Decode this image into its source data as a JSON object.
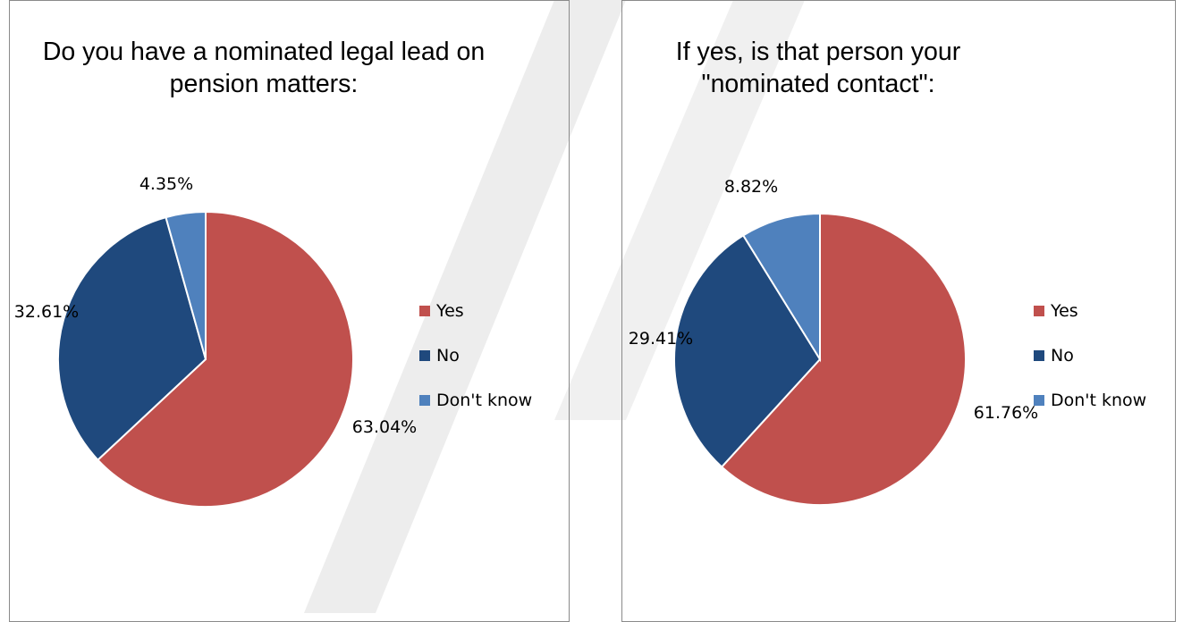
{
  "chart_data": [
    {
      "type": "pie",
      "title": "Do you have a nominated legal lead on pension matters:",
      "categories": [
        "Yes",
        "No",
        "Don't know"
      ],
      "values": [
        63.04,
        32.61,
        4.35
      ],
      "labels": [
        "63.04%",
        "32.61%",
        "4.35%"
      ],
      "colors": [
        "#C0504D",
        "#1F497D",
        "#4F81BD"
      ],
      "legend": "right"
    },
    {
      "type": "pie",
      "title": "If yes, is that person your \"nominated contact\":",
      "categories": [
        "Yes",
        "No",
        "Don't know"
      ],
      "values": [
        61.76,
        29.41,
        8.82
      ],
      "labels": [
        "61.76%",
        "29.41%",
        "8.82%"
      ],
      "colors": [
        "#C0504D",
        "#1F497D",
        "#4F81BD"
      ],
      "legend": "right"
    }
  ]
}
